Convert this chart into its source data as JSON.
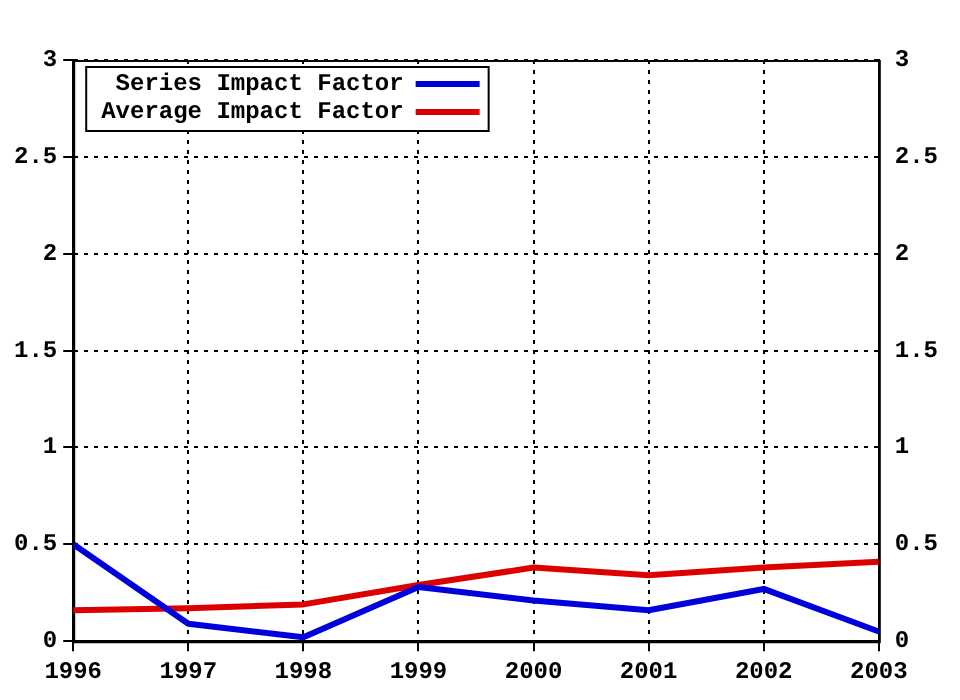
{
  "chart_data": {
    "type": "line",
    "x": [
      1996,
      1997,
      1998,
      1999,
      2000,
      2001,
      2002,
      2003
    ],
    "series": [
      {
        "name": "Series Impact Factor",
        "color": "#0000dd",
        "values": [
          0.5,
          0.09,
          0.02,
          0.28,
          0.21,
          0.16,
          0.27,
          0.05
        ]
      },
      {
        "name": "Average Impact Factor",
        "color": "#dd0000",
        "values": [
          0.16,
          0.17,
          0.19,
          0.29,
          0.38,
          0.34,
          0.38,
          0.41
        ]
      }
    ],
    "xlim": [
      1996,
      2003
    ],
    "xticks": [
      1996,
      1997,
      1998,
      1999,
      2000,
      2001,
      2002,
      2003
    ],
    "ylim": [
      0,
      3
    ],
    "yticks": [
      0,
      0.5,
      1,
      1.5,
      2,
      2.5,
      3
    ],
    "y2lim": [
      0,
      3
    ],
    "y2ticks": [
      0,
      0.5,
      1,
      1.5,
      2,
      2.5,
      3
    ],
    "grid": true,
    "legend": "top left",
    "marker": "none",
    "line_style": "solid"
  }
}
